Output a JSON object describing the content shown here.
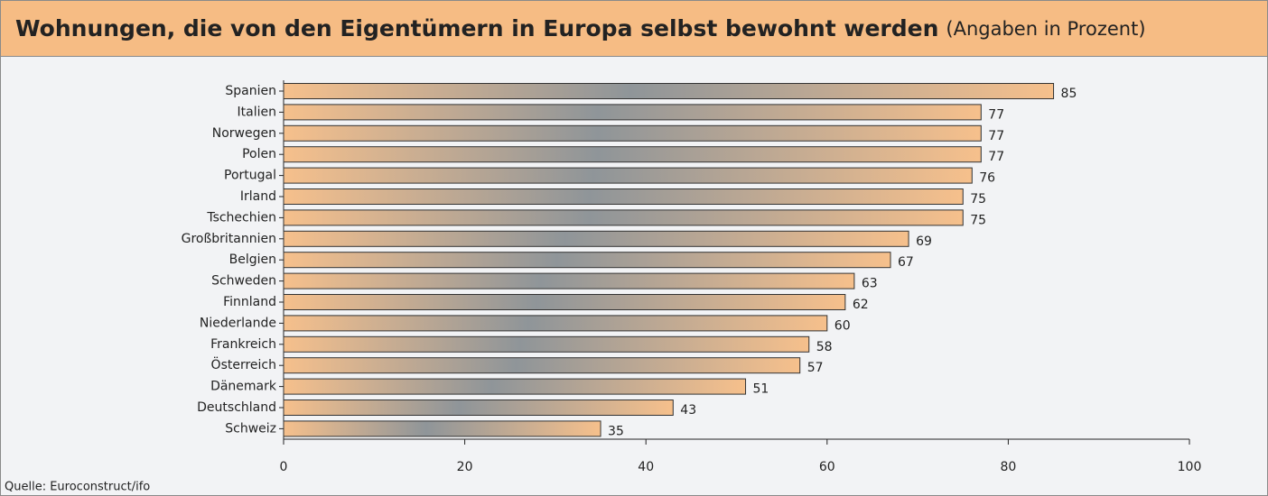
{
  "chart_data": {
    "type": "bar",
    "orientation": "horizontal",
    "title": "Wohnungen, die von den Eigentümern in Europa selbst bewohnt werden",
    "subtitle": "(Angaben in Prozent)",
    "source": "Quelle: Euroconstruct/ifo",
    "categories": [
      "Spanien",
      "Italien",
      "Norwegen",
      "Polen",
      "Portugal",
      "Irland",
      "Tschechien",
      "Großbritannien",
      "Belgien",
      "Schweden",
      "Finnland",
      "Niederlande",
      "Frankreich",
      "Österreich",
      "Dänemark",
      "Deutschland",
      "Schweiz"
    ],
    "values": [
      85,
      77,
      77,
      77,
      76,
      75,
      75,
      69,
      67,
      63,
      62,
      60,
      58,
      57,
      51,
      43,
      35
    ],
    "color": "#f6c08c",
    "xlim": [
      0,
      100
    ],
    "xticks": [
      0,
      20,
      40,
      60,
      80,
      100
    ]
  }
}
